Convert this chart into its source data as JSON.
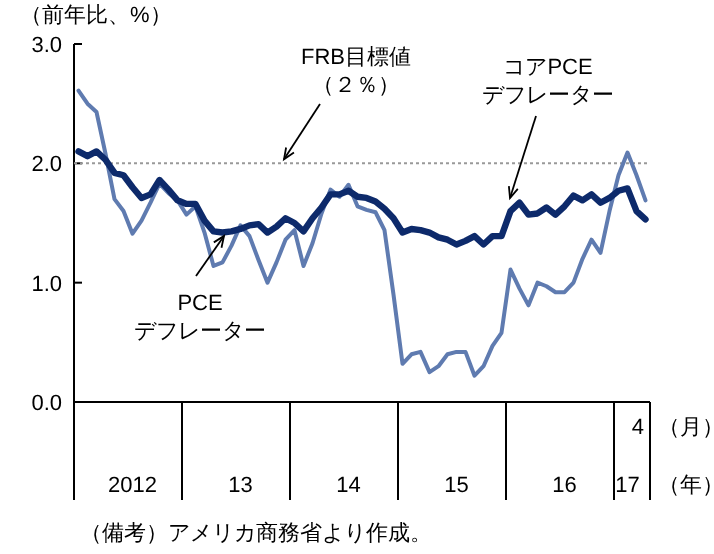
{
  "chart_data": {
    "type": "line",
    "ylabel": "（前年比、%）",
    "xlabel": "（年）",
    "categories": [
      null,
      null,
      null,
      null,
      null,
      null,
      "2012",
      null,
      null,
      null,
      null,
      null,
      null,
      null,
      null,
      null,
      null,
      null,
      "13",
      null,
      null,
      null,
      null,
      null,
      null,
      null,
      null,
      null,
      null,
      null,
      "14",
      null,
      null,
      null,
      null,
      null,
      null,
      null,
      null,
      null,
      null,
      null,
      "15",
      null,
      null,
      null,
      null,
      null,
      null,
      null,
      null,
      null,
      null,
      null,
      "16",
      null,
      null,
      null,
      null,
      null,
      null,
      "17",
      null,
      null
    ],
    "ylim": [
      0,
      3
    ],
    "yticks": [
      {
        "value": 0,
        "label": "0.0"
      },
      {
        "value": 1,
        "label": "1.0"
      },
      {
        "value": 2,
        "label": "2.0"
      },
      {
        "value": 3,
        "label": "3.0"
      }
    ],
    "grid": false,
    "line_style": "solid",
    "series": [
      {
        "name": "PCE\nデフレーター",
        "color": "#5f7bb0",
        "values": [
          2.61,
          2.5,
          2.43,
          2.08,
          1.7,
          1.6,
          1.41,
          1.52,
          1.67,
          1.83,
          1.75,
          1.69,
          1.57,
          1.64,
          1.42,
          1.14,
          1.17,
          1.31,
          1.48,
          1.39,
          1.19,
          1.0,
          1.17,
          1.36,
          1.44,
          1.14,
          1.33,
          1.58,
          1.78,
          1.72,
          1.82,
          1.64,
          1.61,
          1.59,
          1.44,
          0.9,
          0.32,
          0.4,
          0.42,
          0.25,
          0.3,
          0.4,
          0.42,
          0.42,
          0.22,
          0.3,
          0.47,
          0.58,
          1.11,
          0.95,
          0.81,
          1.0,
          0.97,
          0.92,
          0.92,
          1.0,
          1.2,
          1.36,
          1.25,
          1.6,
          1.9,
          2.09,
          1.9,
          1.69
        ]
      },
      {
        "name": "コアPCE\nデフレーター",
        "color": "#0d2a6b",
        "values": [
          2.1,
          2.06,
          2.1,
          2.03,
          1.92,
          1.9,
          1.8,
          1.71,
          1.74,
          1.86,
          1.78,
          1.69,
          1.66,
          1.66,
          1.52,
          1.43,
          1.42,
          1.43,
          1.45,
          1.48,
          1.49,
          1.42,
          1.47,
          1.54,
          1.5,
          1.43,
          1.54,
          1.63,
          1.74,
          1.74,
          1.77,
          1.72,
          1.71,
          1.68,
          1.62,
          1.54,
          1.42,
          1.45,
          1.44,
          1.42,
          1.38,
          1.36,
          1.32,
          1.35,
          1.39,
          1.32,
          1.39,
          1.39,
          1.6,
          1.67,
          1.57,
          1.58,
          1.63,
          1.57,
          1.64,
          1.73,
          1.69,
          1.74,
          1.67,
          1.71,
          1.77,
          1.79,
          1.6,
          1.53
        ]
      }
    ],
    "ref_lines": [
      {
        "axis": "y",
        "value": 2,
        "label": "FRB目標値（２％）",
        "color": "#999999",
        "line_style": "dotted"
      }
    ],
    "annotations": [
      "4",
      "（月）",
      "（備考）アメリカ商務省より作成。"
    ]
  }
}
